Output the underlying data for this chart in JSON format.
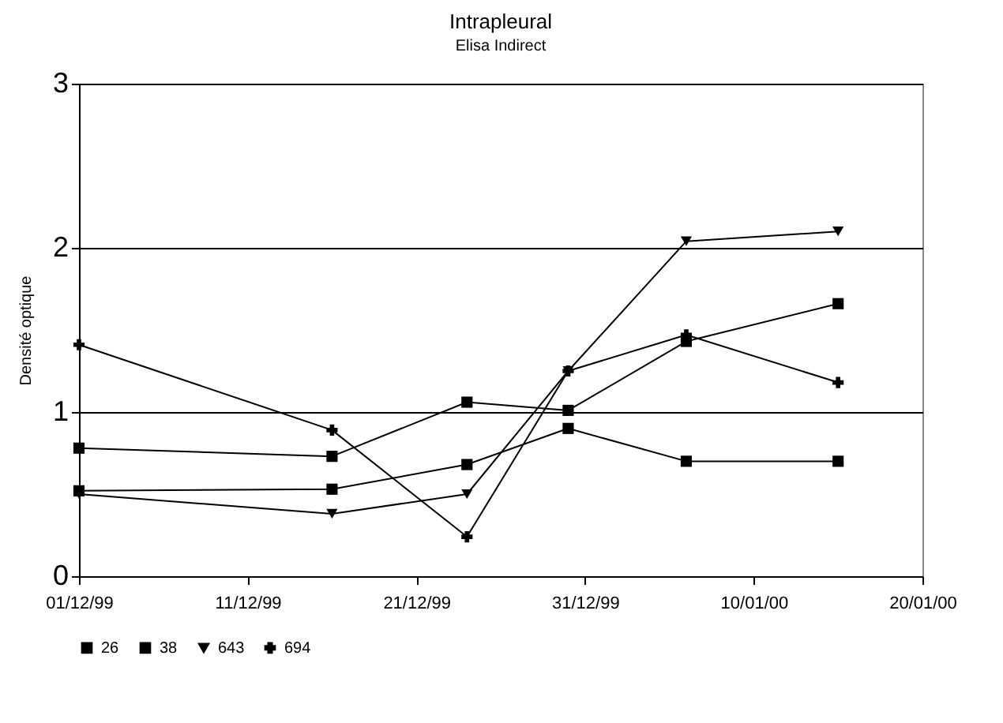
{
  "chart_data": {
    "type": "line",
    "title": "Intrapleural",
    "subtitle": "Elisa Indirect",
    "ylabel": "Densité optique",
    "x": [
      "1999-12-01",
      "1999-12-16",
      "1999-12-24",
      "1999-12-30",
      "2000-01-06",
      "2000-01-15"
    ],
    "series": [
      {
        "name": "26",
        "color": "#000000",
        "marker": "square",
        "values": [
          0.52,
          0.53,
          0.68,
          0.9,
          0.7,
          0.7
        ]
      },
      {
        "name": "38",
        "color": "#000000",
        "marker": "square",
        "values": [
          0.78,
          0.73,
          1.06,
          1.01,
          1.43,
          1.66
        ]
      },
      {
        "name": "643",
        "color": "#000000",
        "marker": "triangle",
        "values": [
          0.5,
          0.38,
          0.5,
          1.25,
          2.04,
          2.1
        ]
      },
      {
        "name": "694",
        "color": "#000000",
        "marker": "cross",
        "values": [
          1.41,
          0.89,
          0.24,
          1.25,
          1.47,
          1.18
        ]
      }
    ],
    "xlim": [
      "1999-12-01",
      "2000-01-20"
    ],
    "xticks": [
      {
        "value": "1999-12-01",
        "label": "01/12/99"
      },
      {
        "value": "1999-12-11",
        "label": "11/12/99"
      },
      {
        "value": "1999-12-21",
        "label": "21/12/99"
      },
      {
        "value": "1999-12-31",
        "label": "31/12/99"
      },
      {
        "value": "2000-01-10",
        "label": "10/01/00"
      },
      {
        "value": "2000-01-20",
        "label": "20/01/00"
      }
    ],
    "ylim": [
      0,
      3
    ],
    "yticks": [
      0,
      1,
      2,
      3
    ],
    "grid": "y",
    "legend": "bottom"
  }
}
